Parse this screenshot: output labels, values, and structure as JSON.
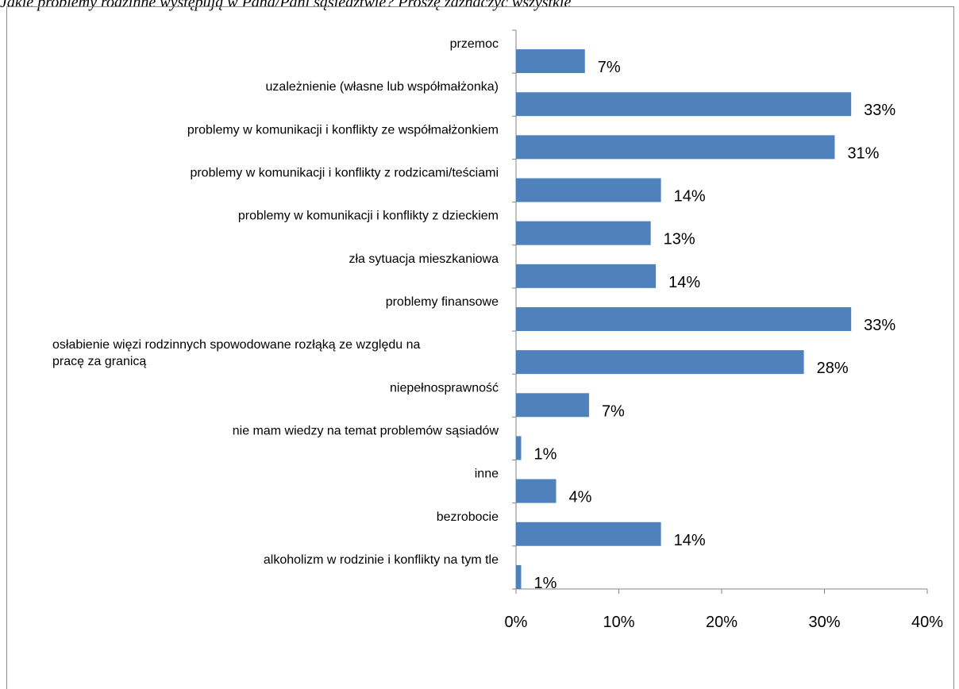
{
  "page": {
    "header_text": "Jakie problemy rodzinne występują w Pana/Pani sąsiedztwie? Proszę zaznaczyć wszystkie"
  },
  "chart_data": {
    "type": "bar",
    "orientation": "horizontal",
    "title": "",
    "xlabel": "",
    "ylabel": "",
    "xlim": [
      0,
      40
    ],
    "grid": false,
    "legend": "none",
    "bar_color": "#4f81bd",
    "x_ticks": [
      "0%",
      "10%",
      "20%",
      "30%",
      "40%"
    ],
    "categories": [
      [
        "przemoc "
      ],
      [
        "uzależnienie (własne lub współmałżonka)"
      ],
      [
        "problemy w komunikacji i konflikty ze współmałżonkiem"
      ],
      [
        "problemy w komunikacji i konflikty z rodzicami/teściami"
      ],
      [
        "problemy w komunikacji i konflikty z dzieckiem"
      ],
      [
        "zła sytuacja mieszkaniowa"
      ],
      [
        "problemy finansowe"
      ],
      [
        "osłabienie więzi rodzinnych spowodowane rozłąką ze względu na",
        "pracę za granicą"
      ],
      [
        "niepełnosprawność"
      ],
      [
        "nie mam wiedzy na temat problemów sąsiadów"
      ],
      [
        "inne"
      ],
      [
        "bezrobocie"
      ],
      [
        "alkoholizm w rodzinie i konflikty na tym tle"
      ]
    ],
    "values": [
      6.7,
      32.6,
      31.0,
      14.1,
      13.1,
      13.6,
      32.6,
      28.0,
      7.1,
      0.5,
      3.9,
      14.1,
      0.5
    ],
    "labels": [
      "7%",
      "33%",
      "31%",
      "14%",
      "13%",
      "14%",
      "33%",
      "28%",
      "7%",
      "1%",
      "4%",
      "14%",
      "1%"
    ]
  }
}
